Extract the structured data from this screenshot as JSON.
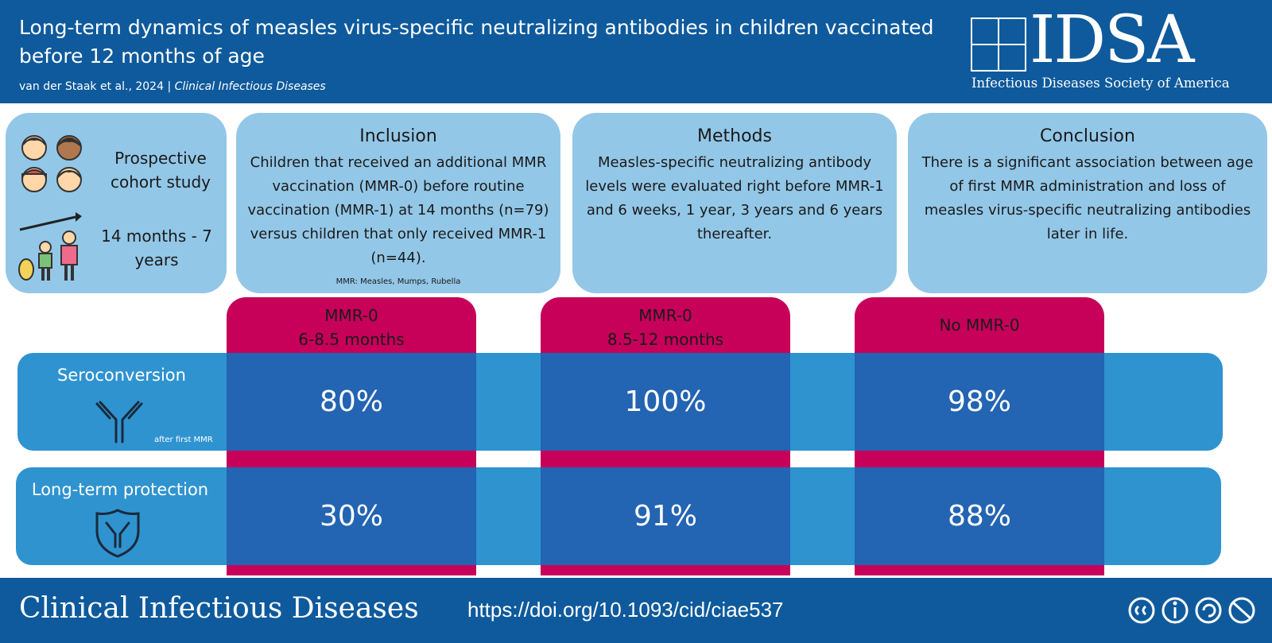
{
  "header": {
    "title": "Long-term dynamics of measles virus-specific neutralizing antibodies in children vaccinated before 12 months of age",
    "authors": "van der Staak et al., 2024",
    "separator": "|",
    "journal": "Clinical Infectious Diseases",
    "logo_text": "IDSA",
    "logo_subtitle": "Infectious Diseases Society of America"
  },
  "study": {
    "design": "Prospective cohort study",
    "duration": "14 months - 7 years",
    "icons": [
      "children-faces-icon",
      "family-growth-icon"
    ]
  },
  "inclusion": {
    "heading": "Inclusion",
    "text": "Children that received an additional MMR vaccination (MMR-0) before routine vaccination (MMR-1) at 14 months (n=79) versus children that only received MMR-1 (n=44).",
    "footnote": "MMR: Measles, Mumps, Rubella"
  },
  "methods": {
    "heading": "Methods",
    "text": "Measles-specific neutralizing antibody levels were evaluated right before MMR-1 and 6 weeks, 1 year, 3 years and 6 years thereafter."
  },
  "conclusion": {
    "heading": "Conclusion",
    "text": "There is a significant association between age of first MMR administration and loss of measles virus-specific neutralizing antibodies later in life."
  },
  "groups": [
    {
      "line1": "MMR-0",
      "line2": "6-8.5 months"
    },
    {
      "line1": "MMR-0",
      "line2": "8.5-12 months"
    },
    {
      "line1": "No MMR-0",
      "line2": ""
    }
  ],
  "rows": [
    {
      "label": "Seroconversion",
      "note": "after first MMR",
      "icon": "antibody-icon",
      "values": [
        "80%",
        "100%",
        "98%"
      ]
    },
    {
      "label": "Long-term protection",
      "note": "",
      "icon": "shield-antibody-icon",
      "values": [
        "30%",
        "91%",
        "88%"
      ]
    }
  ],
  "colors": {
    "header_bg": "#0e5a9c",
    "box_bg": "#93c7e7",
    "group_bg": "#c7005a",
    "row_bg": "#2f93d0",
    "cell_bg": "#2364b3"
  },
  "footer": {
    "journal": "Clinical Infectious Diseases",
    "doi": "https://doi.org/10.1093/cid/ciae537",
    "license_icons": [
      "cc-icon",
      "by-icon",
      "sa-icon",
      "nc-icon"
    ]
  }
}
